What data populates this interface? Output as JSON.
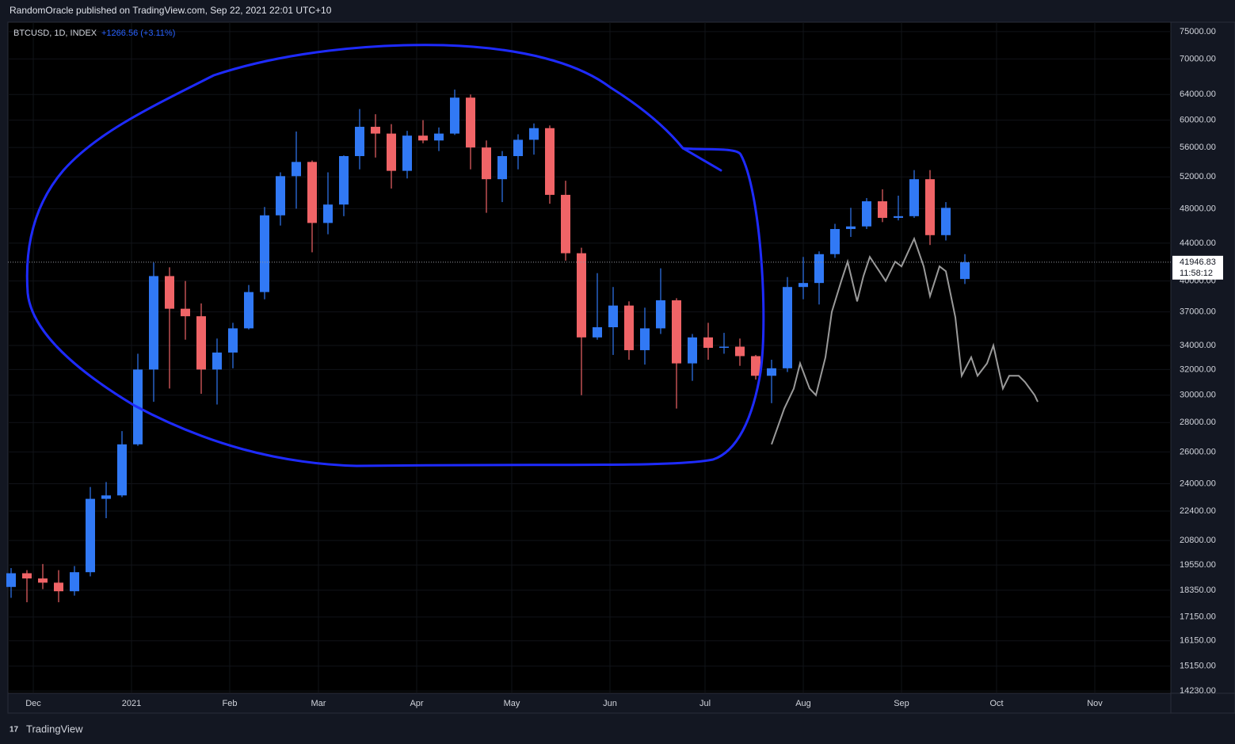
{
  "header": {
    "publisher": "RandomOracle published on TradingView.com, Sep 22, 2021 22:01 UTC+10"
  },
  "footer": {
    "brand": "TradingView"
  },
  "chart_data": {
    "type": "candlestick",
    "symbol": "BTCUSD, 1D, INDEX",
    "change": "+1266.56 (+3.11%)",
    "last_price": 41946.83,
    "last_price_label": "41946.83",
    "countdown": "11:58:12",
    "log_scale": true,
    "grid": true,
    "up_color": "#3179f5",
    "down_color": "#f06467",
    "xlim": [
      -8,
      359
    ],
    "xticks": [
      {
        "value": 0,
        "label": "Dec"
      },
      {
        "value": 31,
        "label": "2021"
      },
      {
        "value": 62,
        "label": "Feb"
      },
      {
        "value": 90,
        "label": "Mar"
      },
      {
        "value": 121,
        "label": "Apr"
      },
      {
        "value": 151,
        "label": "May"
      },
      {
        "value": 182,
        "label": "Jun"
      },
      {
        "value": 212,
        "label": "Jul"
      },
      {
        "value": 243,
        "label": "Aug"
      },
      {
        "value": 274,
        "label": "Sep"
      },
      {
        "value": 304,
        "label": "Oct"
      },
      {
        "value": 335,
        "label": "Nov"
      }
    ],
    "ylim": [
      14150,
      76800
    ],
    "yticks": [
      {
        "value": 14230,
        "label": "14230.00"
      },
      {
        "value": 15150,
        "label": "15150.00"
      },
      {
        "value": 16150,
        "label": "16150.00"
      },
      {
        "value": 17150,
        "label": "17150.00"
      },
      {
        "value": 18350,
        "label": "18350.00"
      },
      {
        "value": 19550,
        "label": "19550.00"
      },
      {
        "value": 20800,
        "label": "20800.00"
      },
      {
        "value": 22400,
        "label": "22400.00"
      },
      {
        "value": 24000,
        "label": "24000.00"
      },
      {
        "value": 26000,
        "label": "26000.00"
      },
      {
        "value": 28000,
        "label": "28000.00"
      },
      {
        "value": 30000,
        "label": "30000.00"
      },
      {
        "value": 32000,
        "label": "32000.00"
      },
      {
        "value": 34000,
        "label": "34000.00"
      },
      {
        "value": 37000,
        "label": "37000.00"
      },
      {
        "value": 40000,
        "label": "40000.00"
      },
      {
        "value": 44000,
        "label": "44000.00"
      },
      {
        "value": 48000,
        "label": "48000.00"
      },
      {
        "value": 52000,
        "label": "52000.00"
      },
      {
        "value": 56000,
        "label": "56000.00"
      },
      {
        "value": 60000,
        "label": "60000.00"
      },
      {
        "value": 64000,
        "label": "64000.00"
      },
      {
        "value": 70000,
        "label": "70000.00"
      },
      {
        "value": 75000,
        "label": "75000.00"
      }
    ],
    "candles": {
      "x": [
        -7,
        -2,
        3,
        8,
        13,
        18,
        23,
        28,
        33,
        38,
        43,
        48,
        53,
        58,
        63,
        68,
        73,
        78,
        83,
        88,
        93,
        98,
        103,
        108,
        113,
        118,
        123,
        128,
        133,
        138,
        143,
        148,
        153,
        158,
        163,
        168,
        173,
        178,
        183,
        188,
        193,
        198,
        203,
        208,
        213,
        218,
        223,
        228,
        233,
        238,
        243,
        248,
        253,
        258,
        263,
        268,
        273,
        278,
        283,
        288,
        294
      ],
      "open": [
        18500,
        19150,
        18900,
        18700,
        18300,
        19200,
        23100,
        23300,
        26500,
        32000,
        40500,
        37300,
        36600,
        32000,
        33400,
        35500,
        38900,
        47200,
        52100,
        54000,
        46300,
        48500,
        54800,
        59000,
        58000,
        52800,
        57700,
        57000,
        58000,
        63500,
        56000,
        51700,
        54800,
        57100,
        58800,
        49700,
        42900,
        34700,
        35600,
        37600,
        33600,
        35500,
        38100,
        32500,
        34700,
        33800,
        33900,
        33100,
        31500,
        32100,
        39400,
        39800,
        42800,
        45600,
        45900,
        48900,
        46900,
        47100,
        51700,
        44900,
        40200
      ],
      "high": [
        19400,
        19300,
        19600,
        19300,
        19500,
        23800,
        24100,
        27400,
        33300,
        41900,
        41400,
        40000,
        37800,
        34600,
        36000,
        39600,
        48200,
        52600,
        58300,
        54200,
        52600,
        54900,
        61700,
        60900,
        59400,
        58400,
        60000,
        58900,
        64800,
        64000,
        57000,
        55500,
        57900,
        59500,
        59200,
        51500,
        43500,
        40800,
        39400,
        38000,
        37400,
        41300,
        38300,
        35000,
        36000,
        35100,
        34600,
        33200,
        32800,
        40400,
        42500,
        43100,
        46200,
        48100,
        49300,
        50400,
        49600,
        52900,
        52900,
        48800,
        42800
      ],
      "low": [
        18000,
        17800,
        18400,
        17800,
        18100,
        19000,
        22000,
        23200,
        26400,
        29500,
        30500,
        34500,
        30100,
        29300,
        32100,
        35400,
        38200,
        46000,
        48000,
        43000,
        45000,
        47100,
        53000,
        54600,
        50500,
        51800,
        56600,
        55500,
        57800,
        53000,
        47500,
        48800,
        53000,
        55000,
        48600,
        42100,
        30000,
        34500,
        33200,
        32800,
        32400,
        35000,
        29000,
        31100,
        32800,
        33300,
        32300,
        31200,
        29400,
        31800,
        38200,
        37700,
        42400,
        44700,
        45600,
        46400,
        46600,
        46900,
        43800,
        44300,
        39700
      ],
      "close": [
        19150,
        18900,
        18700,
        18300,
        19200,
        23100,
        23300,
        26500,
        32000,
        40500,
        37300,
        36600,
        32000,
        33400,
        35500,
        38900,
        47200,
        52100,
        54000,
        46300,
        48500,
        54800,
        59000,
        58000,
        52800,
        57700,
        57000,
        58000,
        63500,
        56000,
        51700,
        54800,
        57100,
        58800,
        49700,
        42900,
        34700,
        35600,
        37600,
        33600,
        35500,
        38100,
        32500,
        34700,
        33800,
        33900,
        33100,
        31500,
        32100,
        39400,
        39800,
        42800,
        45600,
        45900,
        48900,
        46900,
        47100,
        51700,
        44900,
        48100,
        41946.83
      ]
    },
    "series": [
      {
        "color": "#9a9a9a",
        "x": [
          233,
          237,
          240,
          242,
          245,
          247,
          250,
          252,
          255,
          257,
          260,
          262,
          264,
          267,
          269,
          272,
          274,
          278,
          281,
          283,
          286,
          288,
          291,
          293,
          296,
          298,
          301,
          303,
          306,
          308,
          311,
          313,
          316,
          317
        ],
        "values": [
          26500,
          29000,
          30500,
          32500,
          30500,
          30000,
          33000,
          37000,
          40000,
          42000,
          38000,
          40500,
          42500,
          41000,
          40000,
          42000,
          41500,
          44500,
          41500,
          38500,
          41500,
          41000,
          36500,
          31500,
          33000,
          31500,
          32500,
          34000,
          30500,
          31500,
          31500,
          31000,
          30000,
          29500
        ]
      }
    ]
  }
}
